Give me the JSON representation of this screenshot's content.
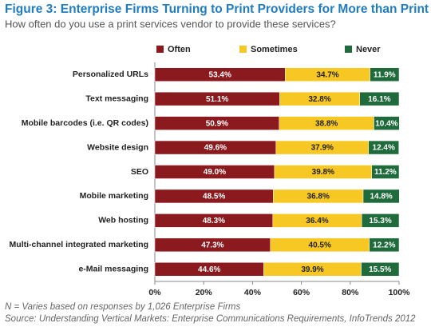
{
  "chart_data": {
    "type": "bar",
    "orientation": "horizontal",
    "stacked": true,
    "title": "Figure 3: Enterprise Firms Turning to Print Providers for More than Print",
    "subtitle": "How often do you use a print services vendor to provide these services?",
    "categories": [
      "Personalized URLs",
      "Text messaging",
      "Mobile barcodes (i.e. QR codes)",
      "Website design",
      "SEO",
      "Mobile marketing",
      "Web hosting",
      "Multi-channel integrated marketing",
      "e-Mail messaging"
    ],
    "series": [
      {
        "name": "Often",
        "color": "#8b1a1e",
        "label_color": "#ffffff",
        "values": [
          53.4,
          51.1,
          50.9,
          49.6,
          49.0,
          48.5,
          48.3,
          47.3,
          44.6
        ],
        "value_labels": [
          "53.4%",
          "51.1%",
          "50.9%",
          "49.6%",
          "49.0%",
          "48.5%",
          "48.3%",
          "47.3%",
          "44.6%"
        ]
      },
      {
        "name": "Sometimes",
        "color": "#f7c823",
        "label_color": "#222222",
        "values": [
          34.7,
          32.8,
          38.8,
          37.9,
          39.8,
          36.8,
          36.4,
          40.5,
          39.9
        ],
        "value_labels": [
          "34.7%",
          "32.8%",
          "38.8%",
          "37.9%",
          "39.8%",
          "36.8%",
          "36.4%",
          "40.5%",
          "39.9%"
        ]
      },
      {
        "name": "Never",
        "color": "#1f6b3b",
        "label_color": "#ffffff",
        "values": [
          11.9,
          16.1,
          10.4,
          12.4,
          11.2,
          14.8,
          15.3,
          12.2,
          15.5
        ],
        "value_labels": [
          "11.9%",
          "16.1%",
          "10.4%",
          "12.4%",
          "11.2%",
          "14.8%",
          "15.3%",
          "12.2%",
          "15.5%"
        ]
      }
    ],
    "xlim": [
      0,
      100
    ],
    "xticks": [
      {
        "value": 0,
        "label": "0%"
      },
      {
        "value": 20,
        "label": "20%"
      },
      {
        "value": 40,
        "label": "40%"
      },
      {
        "value": 60,
        "label": "60%"
      },
      {
        "value": 80,
        "label": "80%"
      },
      {
        "value": 100,
        "label": "100%"
      }
    ],
    "grid": false,
    "legend": "top",
    "notes": [
      "N = Varies based on responses by 1,026 Enterprise Firms",
      "Source: Understanding Vertical Markets: Enterprise Communications Requirements, InfoTrends 2012"
    ]
  }
}
